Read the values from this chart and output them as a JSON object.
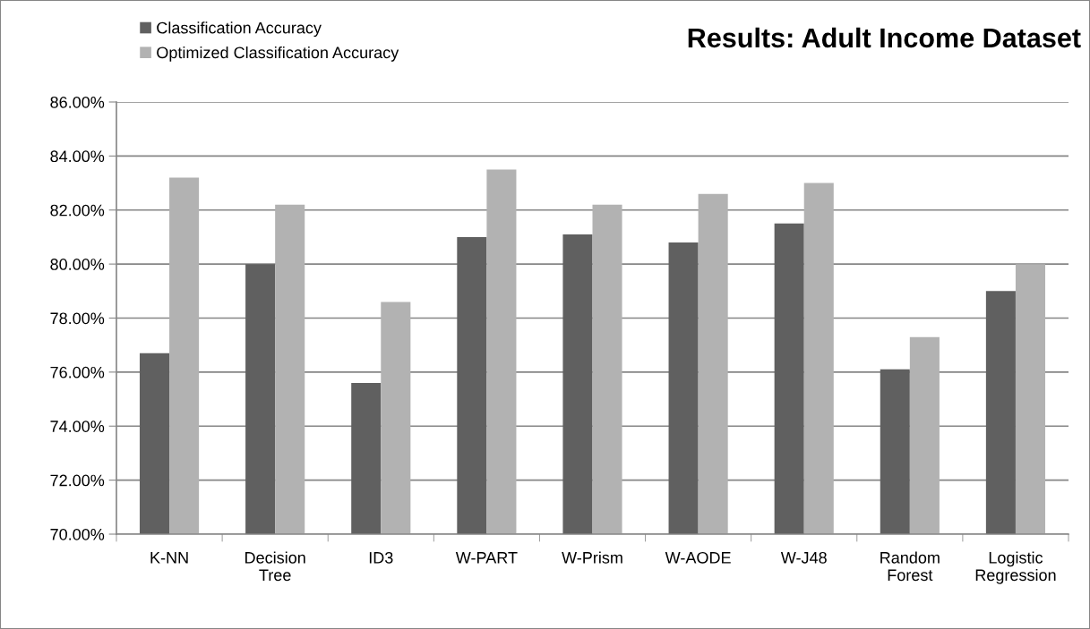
{
  "chart_data": {
    "type": "bar",
    "title": "Results: Adult Income Dataset",
    "categories": [
      "K-NN",
      "Decision Tree",
      "ID3",
      "W-PART",
      "W-Prism",
      "W-AODE",
      "W-J48",
      "Random Forest",
      "Logistic Regression"
    ],
    "series": [
      {
        "name": "Classification Accuracy",
        "color": "#606060",
        "values": [
          76.7,
          80.0,
          75.6,
          81.0,
          81.1,
          80.8,
          81.5,
          76.1,
          79.0
        ]
      },
      {
        "name": "Optimized Classification Accuracy",
        "color": "#b2b2b2",
        "values": [
          83.2,
          82.2,
          78.6,
          83.5,
          82.2,
          82.6,
          83.0,
          77.3,
          80.0
        ]
      }
    ],
    "ylim": [
      70,
      86
    ],
    "yticks": [
      {
        "value": 70,
        "label": "70.00%"
      },
      {
        "value": 72,
        "label": "72.00%"
      },
      {
        "value": 74,
        "label": "74.00%"
      },
      {
        "value": 76,
        "label": "76.00%"
      },
      {
        "value": 78,
        "label": "78.00%"
      },
      {
        "value": 80,
        "label": "80.00%"
      },
      {
        "value": 82,
        "label": "82.00%"
      },
      {
        "value": 84,
        "label": "84.00%"
      },
      {
        "value": 86,
        "label": "86.00%"
      }
    ],
    "grid": "y",
    "legend": "top left"
  }
}
